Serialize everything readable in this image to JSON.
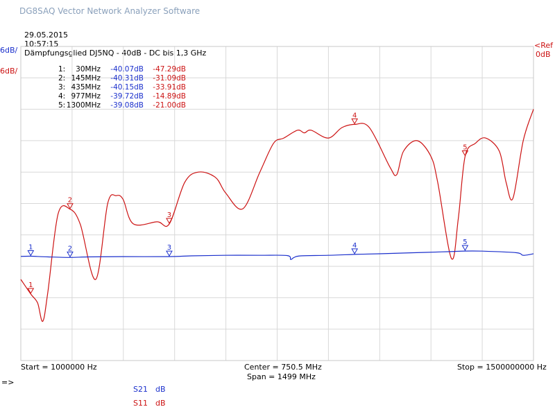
{
  "app_title": "DG8SAQ Vector Network Analyzer Software",
  "header": {
    "date": "29.05.2015",
    "time": "10:57:15",
    "description": "Dämpfungsglied DJ5NQ - 40dB - DC bis 1,3 GHz"
  },
  "axis_labels": {
    "s21_scale": "6dB/",
    "s11_scale": "6dB/",
    "ref_label": "<Ref",
    "ref_value": "0dB"
  },
  "footer": {
    "start": "Start = 1000000 Hz",
    "center": "Center = 750.5 MHz",
    "span": "Span = 1499 MHz",
    "stop": "Stop = 1500000000 Hz",
    "arrow": "=>"
  },
  "legend": [
    {
      "name": "S21",
      "unit": "dB",
      "color": "#1a2fcc"
    },
    {
      "name": "S11",
      "unit": "dB",
      "color": "#cc1111"
    }
  ],
  "markers": [
    {
      "id": "1",
      "freq": "30MHz",
      "s21": "-40.07dB",
      "s11": "-47.29dB"
    },
    {
      "id": "2",
      "freq": "145MHz",
      "s21": "-40.31dB",
      "s11": "-31.09dB"
    },
    {
      "id": "3",
      "freq": "435MHz",
      "s21": "-40.15dB",
      "s11": "-33.91dB"
    },
    {
      "id": "4",
      "freq": "977MHz",
      "s21": "-39.72dB",
      "s11": "-14.89dB"
    },
    {
      "id": "5",
      "freq": "1300MHz",
      "s21": "-39.08dB",
      "s11": "-21.00dB"
    }
  ],
  "chart_data": {
    "type": "line",
    "x_unit": "MHz",
    "xlim": [
      1,
      1500
    ],
    "grid": true,
    "series": [
      {
        "name": "S21",
        "color": "#1a2fcc",
        "x": [
          1,
          30,
          80,
          145,
          200,
          300,
          435,
          500,
          600,
          700,
          780,
          790,
          800,
          820,
          900,
          977,
          1050,
          1150,
          1250,
          1300,
          1350,
          1450,
          1470,
          1500
        ],
        "y": [
          -40.1,
          -40.07,
          -40.2,
          -40.31,
          -40.2,
          -40.15,
          -40.15,
          -40.0,
          -39.9,
          -39.9,
          -39.95,
          -40.7,
          -40.3,
          -40.0,
          -39.9,
          -39.72,
          -39.6,
          -39.4,
          -39.2,
          -39.08,
          -39.1,
          -39.4,
          -39.9,
          -39.6
        ]
      },
      {
        "name": "S11",
        "color": "#cc1111",
        "x": [
          1,
          30,
          50,
          65,
          80,
          110,
          145,
          175,
          220,
          255,
          280,
          300,
          330,
          400,
          435,
          480,
          520,
          570,
          600,
          650,
          700,
          740,
          770,
          810,
          830,
          850,
          900,
          940,
          977,
          1020,
          1080,
          1100,
          1120,
          1160,
          1200,
          1220,
          1260,
          1280,
          1300,
          1330,
          1360,
          1400,
          1420,
          1440,
          1470,
          1500
        ],
        "y": [
          -44.5,
          -47.29,
          -49.0,
          -52.5,
          -47.0,
          -32.0,
          -31.09,
          -34.0,
          -44.5,
          -30.0,
          -28.5,
          -29.2,
          -33.9,
          -33.5,
          -33.91,
          -26.0,
          -24.0,
          -25.0,
          -28.0,
          -31.0,
          -24.0,
          -18.5,
          -17.5,
          -16.0,
          -16.5,
          -16.0,
          -17.5,
          -15.5,
          -14.89,
          -15.5,
          -23.0,
          -24.5,
          -20.0,
          -18.0,
          -21.0,
          -26.0,
          -40.5,
          -33.0,
          -21.0,
          -18.5,
          -17.5,
          -20.0,
          -26.0,
          -29.0,
          -18.0,
          -12.0
        ]
      }
    ]
  }
}
